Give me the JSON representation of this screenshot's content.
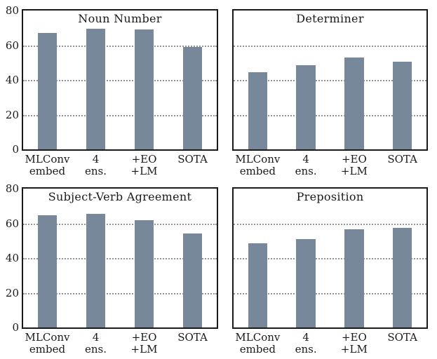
{
  "figure": {
    "background": "#ffffff",
    "bar_color": "#77889A",
    "grid_color": "#979797",
    "frame_color": "#1a1a1a",
    "x_tick_lines": [
      [
        "MLConv",
        "embed"
      ],
      [
        "4",
        "ens."
      ],
      [
        "+EO",
        "+LM"
      ],
      [
        "SOTA"
      ]
    ]
  },
  "chart_data": [
    {
      "type": "bar",
      "title": "Noun Number",
      "categories": [
        "MLConv embed",
        "4 ens.",
        "+EO +LM",
        "SOTA"
      ],
      "values": [
        67,
        69.5,
        69,
        59
      ],
      "ylim": [
        0,
        80
      ],
      "yticks": [
        0,
        20,
        40,
        60,
        80
      ],
      "gridlines_at": [
        20,
        40,
        60
      ],
      "grid_style": "dotted",
      "show_y_tick_labels": true,
      "legend": "none"
    },
    {
      "type": "bar",
      "title": "Determiner",
      "categories": [
        "MLConv embed",
        "4 ens.",
        "+EO +LM",
        "SOTA"
      ],
      "values": [
        44.5,
        48.5,
        53,
        50.5
      ],
      "ylim": [
        0,
        80
      ],
      "yticks": [
        0,
        20,
        40,
        60,
        80
      ],
      "gridlines_at": [
        20,
        40,
        60
      ],
      "grid_style": "dotted",
      "show_y_tick_labels": false,
      "legend": "none"
    },
    {
      "type": "bar",
      "title": "Subject-Verb Agreement",
      "categories": [
        "MLConv embed",
        "4 ens.",
        "+EO +LM",
        "SOTA"
      ],
      "values": [
        64.5,
        65.5,
        62,
        54
      ],
      "ylim": [
        0,
        80
      ],
      "yticks": [
        0,
        20,
        40,
        60,
        80
      ],
      "gridlines_at": [
        20,
        40,
        60
      ],
      "grid_style": "dotted",
      "show_y_tick_labels": true,
      "legend": "none"
    },
    {
      "type": "bar",
      "title": "Preposition",
      "categories": [
        "MLConv embed",
        "4 ens.",
        "+EO +LM",
        "SOTA"
      ],
      "values": [
        48.5,
        51,
        56.5,
        57.5
      ],
      "ylim": [
        0,
        80
      ],
      "yticks": [
        0,
        20,
        40,
        60,
        80
      ],
      "gridlines_at": [
        20,
        40,
        60
      ],
      "grid_style": "dotted",
      "show_y_tick_labels": false,
      "legend": "none"
    }
  ]
}
